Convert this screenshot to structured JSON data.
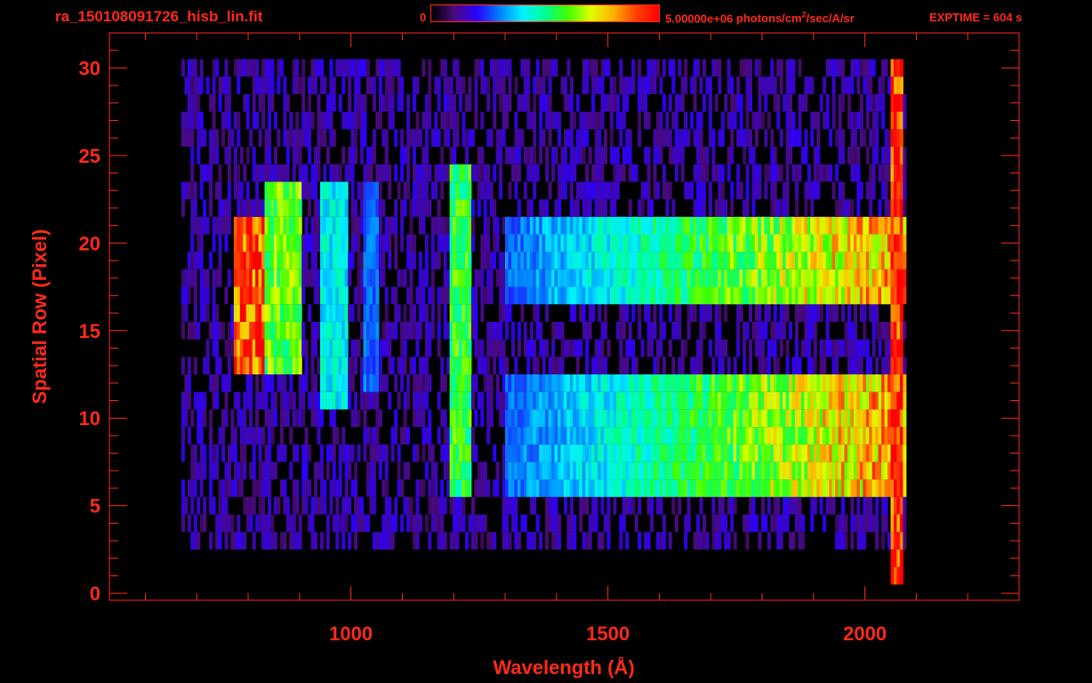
{
  "header": {
    "filename": "ra_150108091726_hisb_lin.fit",
    "colorbar_min": "0",
    "colorbar_max_value": "5.00000e+06",
    "colorbar_units_prefix": "photons/cm",
    "colorbar_units_exponent": "2",
    "colorbar_units_suffix": "/sec/A/sr",
    "exptime": "EXPTIME = 604 s"
  },
  "colors": {
    "axis": "#ff2a1a",
    "background": "#000000",
    "colormap": [
      "#000000",
      "#4a0a7a",
      "#2a00ff",
      "#0080ff",
      "#00f0ff",
      "#00ff90",
      "#40ff00",
      "#e0ff00",
      "#ffb000",
      "#ff4000",
      "#ff0000"
    ]
  },
  "chart_data": {
    "type": "heatmap",
    "title": "",
    "xlabel": "Wavelength (Å)",
    "ylabel": "Spatial Row (Pixel)",
    "xlim": [
      530,
      2300
    ],
    "ylim": [
      -0.4,
      32
    ],
    "xticks": [
      1000,
      1500,
      2000
    ],
    "yticks": [
      0,
      5,
      10,
      15,
      20,
      25,
      30
    ],
    "colorbar_range": [
      0,
      5000000
    ],
    "features": [
      {
        "name": "",
        "x": [
          770,
          830
        ],
        "rows": [
          13,
          21
        ],
        "level": 0.95
      },
      {
        "name": "",
        "x": [
          830,
          900
        ],
        "rows": [
          13,
          23
        ],
        "level": 0.65
      },
      {
        "name": "",
        "x": [
          940,
          990
        ],
        "rows": [
          11,
          23
        ],
        "level": 0.45
      },
      {
        "name": "",
        "x": [
          1020,
          1050
        ],
        "rows": [
          12,
          23
        ],
        "level": 0.3
      },
      {
        "name": "",
        "x": [
          1190,
          1230
        ],
        "rows": [
          6,
          24
        ],
        "level": 0.6
      },
      {
        "name": "",
        "x": [
          1300,
          2080
        ],
        "rows": [
          17,
          21
        ],
        "level_start": 0.3,
        "level_end": 0.9
      },
      {
        "name": "",
        "x": [
          1300,
          2080
        ],
        "rows": [
          6,
          12
        ],
        "level_start": 0.3,
        "level_end": 0.9
      },
      {
        "name": "",
        "x": [
          2050,
          2070
        ],
        "rows": [
          1,
          30
        ],
        "level": 1.0
      }
    ]
  }
}
